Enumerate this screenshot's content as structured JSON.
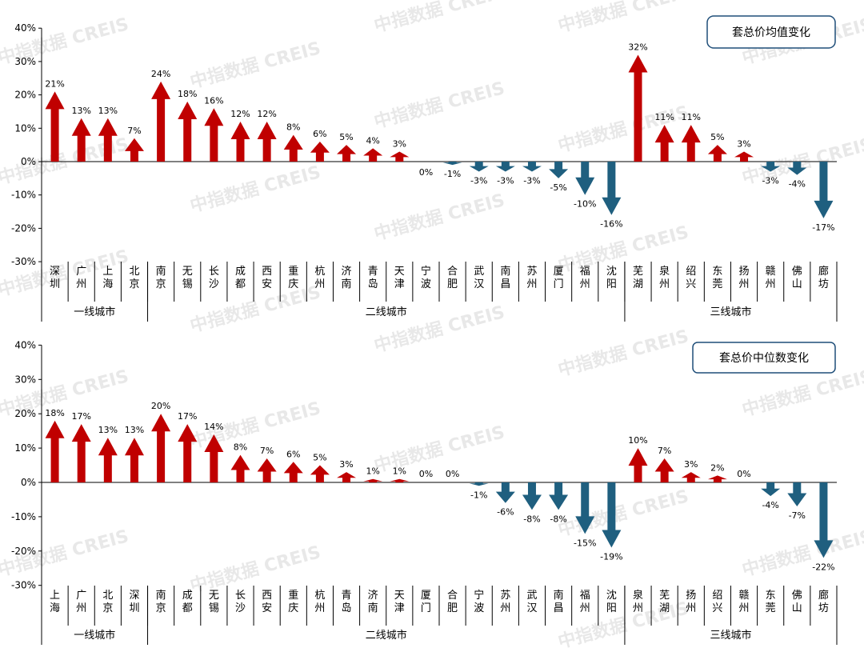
{
  "colors": {
    "up": "#c00000",
    "down": "#1f5f7f",
    "axis": "#000000"
  },
  "watermark": "中指数据 CREIS",
  "chart_data": [
    {
      "type": "bar",
      "title": "套总价均值变化",
      "ylim": [
        -30,
        40
      ],
      "yticks": [
        "40%",
        "30%",
        "20%",
        "10%",
        "0%",
        "-10%",
        "-20%",
        "-30%"
      ],
      "categories": [
        "深圳",
        "广州",
        "上海",
        "北京",
        "南京",
        "无锡",
        "长沙",
        "成都",
        "西安",
        "重庆",
        "杭州",
        "济南",
        "青岛",
        "天津",
        "宁波",
        "合肥",
        "武汉",
        "南昌",
        "苏州",
        "厦门",
        "福州",
        "沈阳",
        "芜湖",
        "泉州",
        "绍兴",
        "东莞",
        "扬州",
        "赣州",
        "佛山",
        "廊坊"
      ],
      "values": [
        21,
        13,
        13,
        7,
        24,
        18,
        16,
        12,
        12,
        8,
        6,
        5,
        4,
        3,
        0,
        -1,
        -3,
        -3,
        -3,
        -5,
        -10,
        -16,
        32,
        11,
        11,
        5,
        3,
        -3,
        -4,
        -17
      ],
      "labels": [
        "21%",
        "13%",
        "13%",
        "7%",
        "24%",
        "18%",
        "16%",
        "12%",
        "12%",
        "8%",
        "6%",
        "5%",
        "4%",
        "3%",
        "0%",
        "-1%",
        "-3%",
        "-3%",
        "-3%",
        "-5%",
        "-10%",
        "-16%",
        "32%",
        "11%",
        "11%",
        "5%",
        "3%",
        "-3%",
        "-4%",
        "-17%"
      ],
      "groups": [
        {
          "name": "一线城市",
          "start": 0,
          "end": 3
        },
        {
          "name": "二线城市",
          "start": 4,
          "end": 21
        },
        {
          "name": "三线城市",
          "start": 22,
          "end": 29
        }
      ]
    },
    {
      "type": "bar",
      "title": "套总价中位数变化",
      "ylim": [
        -30,
        40
      ],
      "yticks": [
        "40%",
        "30%",
        "20%",
        "10%",
        "0%",
        "-10%",
        "-20%",
        "-30%"
      ],
      "categories": [
        "上海",
        "广州",
        "北京",
        "深圳",
        "南京",
        "成都",
        "无锡",
        "长沙",
        "西安",
        "重庆",
        "杭州",
        "青岛",
        "济南",
        "天津",
        "厦门",
        "合肥",
        "宁波",
        "苏州",
        "武汉",
        "南昌",
        "福州",
        "沈阳",
        "泉州",
        "芜湖",
        "扬州",
        "绍兴",
        "赣州",
        "东莞",
        "佛山",
        "廊坊"
      ],
      "values": [
        18,
        17,
        13,
        13,
        20,
        17,
        14,
        8,
        7,
        6,
        5,
        3,
        1,
        1,
        0,
        0,
        -1,
        -6,
        -8,
        -8,
        -15,
        -19,
        10,
        7,
        3,
        2,
        0,
        -4,
        -7,
        -22
      ],
      "labels": [
        "18%",
        "17%",
        "13%",
        "13%",
        "20%",
        "17%",
        "14%",
        "8%",
        "7%",
        "6%",
        "5%",
        "3%",
        "1%",
        "1%",
        "0%",
        "0%",
        "-1%",
        "-6%",
        "-8%",
        "-8%",
        "-15%",
        "-19%",
        "10%",
        "7%",
        "3%",
        "2%",
        "0%",
        "-4%",
        "-7%",
        "-22%"
      ],
      "groups": [
        {
          "name": "一线城市",
          "start": 0,
          "end": 3
        },
        {
          "name": "二线城市",
          "start": 4,
          "end": 21
        },
        {
          "name": "三线城市",
          "start": 22,
          "end": 29
        }
      ]
    }
  ]
}
